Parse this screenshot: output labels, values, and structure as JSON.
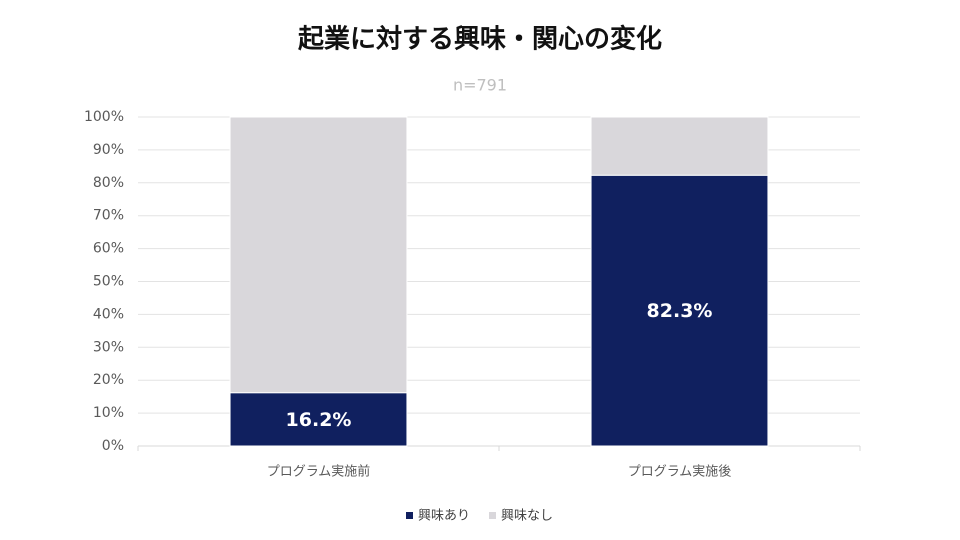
{
  "chart_data": {
    "type": "stacked_bar",
    "title": "起業に対する興味・関心の変化",
    "subtitle": "n=791",
    "categories": [
      "プログラム実施前",
      "プログラム実施後"
    ],
    "series": [
      {
        "name": "興味あり",
        "color": "#10205f",
        "values": [
          16.2,
          82.3
        ],
        "value_labels": [
          "16.2%",
          "82.3%"
        ]
      },
      {
        "name": "興味なし",
        "color": "#d9d7db",
        "values": [
          83.8,
          17.7
        ]
      }
    ],
    "ylim": [
      0,
      100
    ],
    "yticks": [
      {
        "value": 0,
        "label": "0%"
      },
      {
        "value": 10,
        "label": "10%"
      },
      {
        "value": 20,
        "label": "20%"
      },
      {
        "value": 30,
        "label": "30%"
      },
      {
        "value": 40,
        "label": "40%"
      },
      {
        "value": 50,
        "label": "50%"
      },
      {
        "value": 60,
        "label": "60%"
      },
      {
        "value": 70,
        "label": "70%"
      },
      {
        "value": 80,
        "label": "80%"
      },
      {
        "value": 90,
        "label": "90%"
      },
      {
        "value": 100,
        "label": "100%"
      }
    ],
    "grid": true,
    "legend": "bottom"
  }
}
